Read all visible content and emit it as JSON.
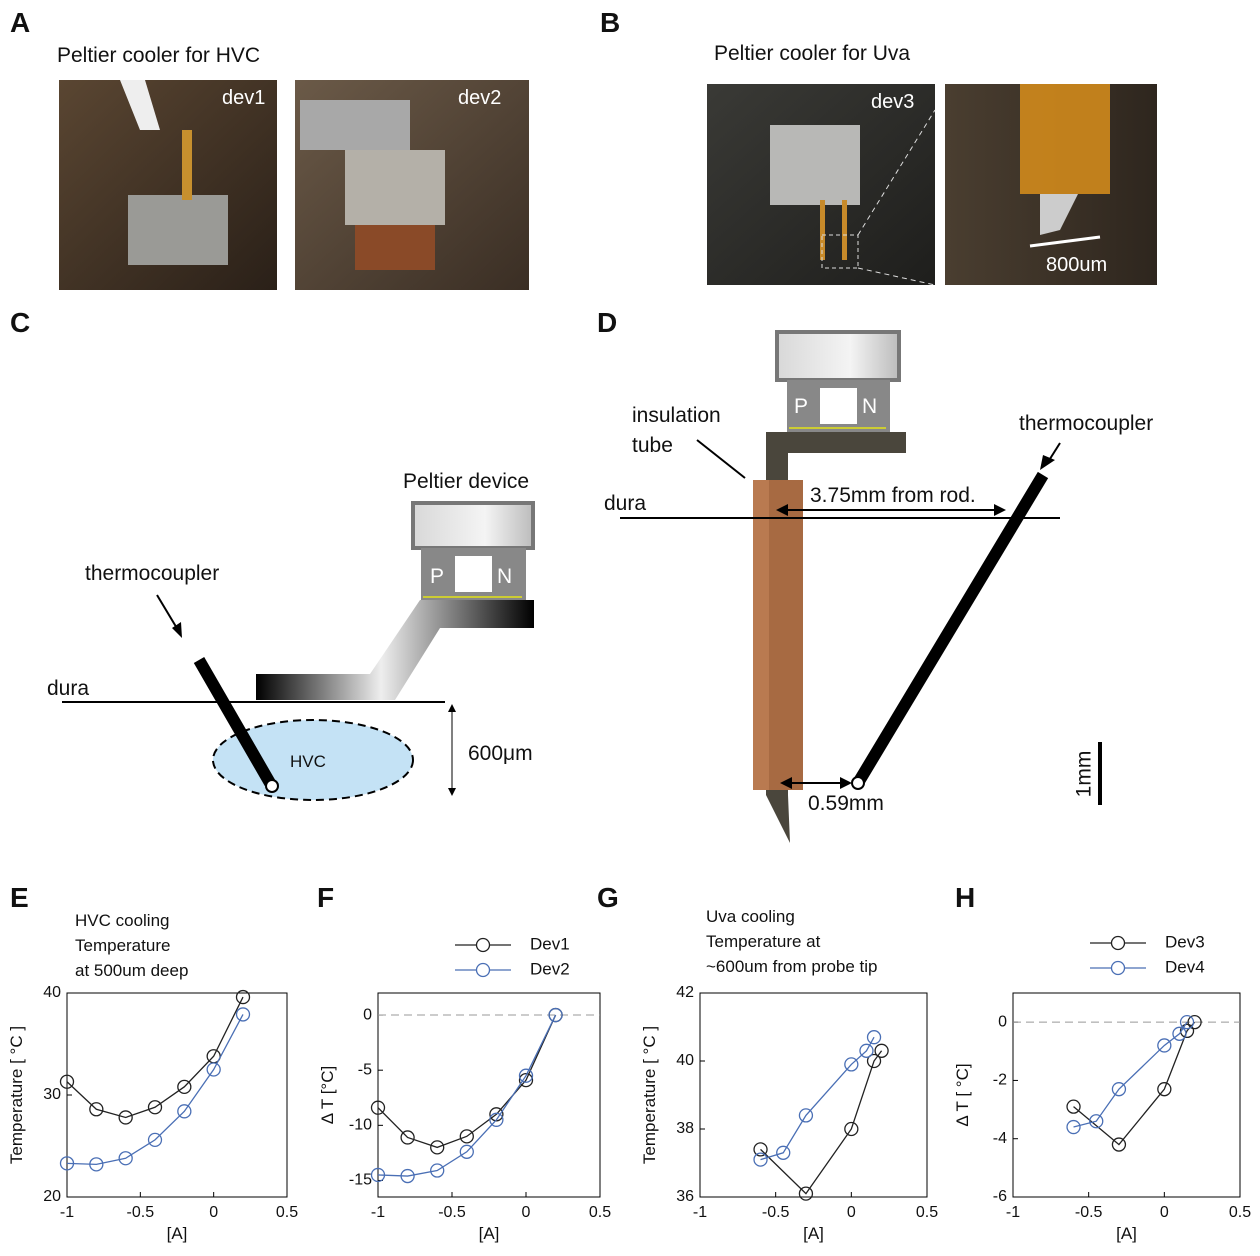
{
  "panel_labels": [
    "A",
    "B",
    "C",
    "D",
    "E",
    "F",
    "G",
    "H"
  ],
  "panel_a": {
    "title": "Peltier cooler for HVC",
    "photo_labels": [
      "dev1",
      "dev2"
    ]
  },
  "panel_b": {
    "title": "Peltier cooler for Uva",
    "photo_labels": [
      "dev3"
    ],
    "scale_label": "800um"
  },
  "panel_c": {
    "device_label": "Peltier device",
    "p_label": "P",
    "n_label": "N",
    "thermocoupler_label": "thermocoupler",
    "dura_label": "dura",
    "region_label": "HVC",
    "depth_label": "600μm"
  },
  "panel_d": {
    "p_label": "P",
    "n_label": "N",
    "insulation_label": [
      "insulation",
      "tube"
    ],
    "thermocoupler_label": "thermocoupler",
    "dura_label": "dura",
    "distance_rod_label": "3.75mm from rod.",
    "distance_tip_label": "0.59mm",
    "scale_label": "1mm"
  },
  "chart_data": [
    {
      "type": "line",
      "annotation_lines": [
        "HVC cooling",
        "Temperature",
        "at 500um  deep"
      ],
      "x_label": "[A]",
      "y_label": "Temperature  [ °C ]",
      "xlim": [
        -1,
        0.5
      ],
      "xticks": [
        -1,
        -0.5,
        0,
        0.5
      ],
      "ylim": [
        20,
        40
      ],
      "yticks": [
        20,
        30,
        40
      ],
      "series": [
        {
          "color": "#222222",
          "x": [
            -1,
            -0.8,
            -0.6,
            -0.4,
            -0.2,
            0,
            0.2
          ],
          "values": [
            31.3,
            28.6,
            27.8,
            28.8,
            30.8,
            33.8,
            39.6
          ]
        },
        {
          "color": "#4a6fb5",
          "x": [
            -1,
            -0.8,
            -0.6,
            -0.4,
            -0.2,
            0,
            0.2
          ],
          "values": [
            23.3,
            23.2,
            23.8,
            25.6,
            28.4,
            32.5,
            37.9
          ]
        }
      ]
    },
    {
      "type": "line",
      "x_label": "[A]",
      "y_label": "Δ T [°C]",
      "xlim": [
        -1,
        0.5
      ],
      "xticks": [
        -1,
        -0.5,
        0,
        0.5
      ],
      "ylim": [
        -16.5,
        2
      ],
      "yticks": [
        -15,
        -10,
        -5,
        0
      ],
      "reference_line": 0,
      "series": [
        {
          "name": "Dev1",
          "color": "#222222",
          "x": [
            -1,
            -0.8,
            -0.6,
            -0.4,
            -0.2,
            0,
            0.2
          ],
          "values": [
            -8.4,
            -11.1,
            -12.0,
            -11.0,
            -9.0,
            -5.9,
            0
          ]
        },
        {
          "name": "Dev2",
          "color": "#4a6fb5",
          "x": [
            -1,
            -0.8,
            -0.6,
            -0.4,
            -0.2,
            0,
            0.2
          ],
          "values": [
            -14.5,
            -14.6,
            -14.1,
            -12.4,
            -9.5,
            -5.5,
            0
          ]
        }
      ]
    },
    {
      "type": "line",
      "annotation_lines": [
        "Uva cooling",
        "Temperature at",
        "~600um from probe tip"
      ],
      "x_label": "[A]",
      "y_label": "Temperature  [ °C ]",
      "xlim": [
        -1,
        0.5
      ],
      "xticks": [
        -1,
        -0.5,
        0,
        0.5
      ],
      "ylim": [
        36,
        42
      ],
      "yticks": [
        36,
        38,
        40,
        42
      ],
      "series": [
        {
          "color": "#222222",
          "x": [
            -0.6,
            -0.3,
            0,
            0.15,
            0.2
          ],
          "values": [
            37.4,
            36.1,
            38.0,
            40.0,
            40.3
          ]
        },
        {
          "color": "#4a6fb5",
          "x": [
            -0.6,
            -0.45,
            -0.3,
            0,
            0.1,
            0.15
          ],
          "values": [
            37.1,
            37.3,
            38.4,
            39.9,
            40.3,
            40.7
          ]
        }
      ]
    },
    {
      "type": "line",
      "x_label": "[A]",
      "y_label": "Δ T  [  °C]",
      "xlim": [
        -1,
        0.5
      ],
      "xticks": [
        -1,
        -0.5,
        0,
        0.5
      ],
      "ylim": [
        -6,
        1
      ],
      "yticks": [
        -6,
        -4,
        -2,
        0
      ],
      "reference_line": 0,
      "series": [
        {
          "name": "Dev3",
          "color": "#222222",
          "x": [
            -0.6,
            -0.3,
            0,
            0.15,
            0.2
          ],
          "values": [
            -2.9,
            -4.2,
            -2.3,
            -0.3,
            0
          ]
        },
        {
          "name": "Dev4",
          "color": "#4a6fb5",
          "x": [
            -0.6,
            -0.45,
            -0.3,
            0,
            0.1,
            0.15
          ],
          "values": [
            -3.6,
            -3.4,
            -2.3,
            -0.8,
            -0.4,
            0
          ]
        }
      ]
    }
  ]
}
